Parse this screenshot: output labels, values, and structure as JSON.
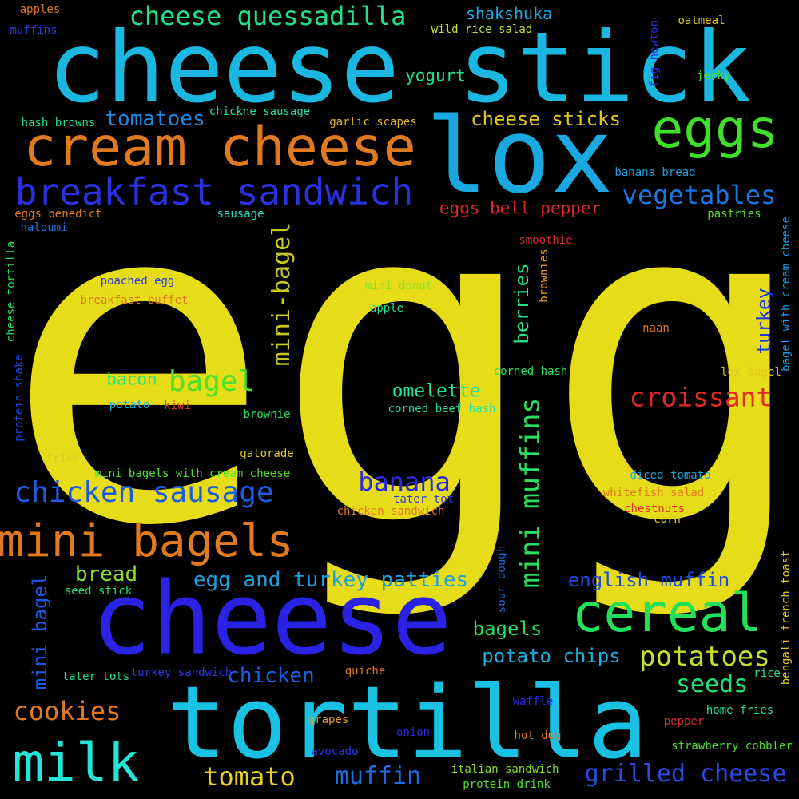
{
  "words": [
    {
      "text": "egg",
      "color": "#e6dc18"
    },
    {
      "text": "cheese stick",
      "color": "#1ab8e0"
    },
    {
      "text": "lox",
      "color": "#1aa8e0"
    },
    {
      "text": "cheese",
      "color": "#2a23e6"
    },
    {
      "text": "tortilla",
      "color": "#19c2e3"
    },
    {
      "text": "cream cheese",
      "color": "#e07a1f"
    },
    {
      "text": "eggs",
      "color": "#3ee02a"
    },
    {
      "text": "breakfast sandwich",
      "color": "#2a31e0"
    },
    {
      "text": "cereal",
      "color": "#22e05a"
    },
    {
      "text": "milk",
      "color": "#23e6d8"
    },
    {
      "text": "mini bagels",
      "color": "#e07a1f"
    },
    {
      "text": "cheese quessadilla",
      "color": "#22e08a"
    },
    {
      "text": "chicken sausage",
      "color": "#1f5be0"
    },
    {
      "text": "croissant",
      "color": "#e02a2a"
    },
    {
      "text": "mini muffins",
      "color": "#2ae060"
    },
    {
      "text": "mini-bagel",
      "color": "#c8c821"
    },
    {
      "text": "bagel",
      "color": "#50e02a"
    },
    {
      "text": "vegetables",
      "color": "#1a78e0"
    },
    {
      "text": "potatoes",
      "color": "#c8e02a"
    },
    {
      "text": "grilled cheese",
      "color": "#2a4ae0"
    },
    {
      "text": "banana",
      "color": "#2a2ae0"
    },
    {
      "text": "egg and turkey patties",
      "color": "#1aa0e0"
    },
    {
      "text": "tomatoes",
      "color": "#1a8ae0"
    },
    {
      "text": "cheese sticks",
      "color": "#e0c821"
    },
    {
      "text": "cookies",
      "color": "#e07a1f"
    },
    {
      "text": "tomato",
      "color": "#e6d21f"
    },
    {
      "text": "muffin",
      "color": "#1f6be0"
    },
    {
      "text": "english muffin",
      "color": "#1f4ae0"
    },
    {
      "text": "seeds",
      "color": "#23e07a"
    },
    {
      "text": "omelette",
      "color": "#22e0a0"
    },
    {
      "text": "mini bagel",
      "color": "#1a5ae0"
    },
    {
      "text": "berries",
      "color": "#22e08a"
    },
    {
      "text": "turkey",
      "color": "#1a38e0"
    },
    {
      "text": "potato chips",
      "color": "#1ab0e0"
    },
    {
      "text": "chicken",
      "color": "#1a60e0"
    },
    {
      "text": "bread",
      "color": "#8ae022"
    },
    {
      "text": "bagels",
      "color": "#22e060"
    },
    {
      "text": "bacon",
      "color": "#22e07a"
    },
    {
      "text": "eggs bell pepper",
      "color": "#e02a2a"
    },
    {
      "text": "shakshuka",
      "color": "#1aa8e0"
    },
    {
      "text": "yogurt",
      "color": "#22e08a"
    },
    {
      "text": "apples",
      "color": "#e07a1f"
    },
    {
      "text": "muffins",
      "color": "#2a3ae0"
    },
    {
      "text": "wild rice salad",
      "color": "#c8e02a"
    },
    {
      "text": "oatmeal",
      "color": "#e0c821"
    },
    {
      "text": "fig newton",
      "color": "#2a2ae0"
    },
    {
      "text": "jerky",
      "color": "#50e02a"
    },
    {
      "text": "hash browns",
      "color": "#22e08a"
    },
    {
      "text": "chickne sausage",
      "color": "#22e0a0"
    },
    {
      "text": "garlic scapes",
      "color": "#e0b821"
    },
    {
      "text": "banana bread",
      "color": "#1aa0e0"
    },
    {
      "text": "eggs benedict",
      "color": "#e07a1f"
    },
    {
      "text": "sausage",
      "color": "#22e0c0"
    },
    {
      "text": "pastries",
      "color": "#50e02a"
    },
    {
      "text": "haloumi",
      "color": "#1a78e0"
    },
    {
      "text": "smoothie",
      "color": "#e02a2a"
    },
    {
      "text": "bagel with cream cheese",
      "color": "#1a9ae0"
    },
    {
      "text": "cheese tortilla",
      "color": "#22e060"
    },
    {
      "text": "poached egg",
      "color": "#2a3ae0"
    },
    {
      "text": "breakfast buffet",
      "color": "#e07a1f"
    },
    {
      "text": "mini donut",
      "color": "#8ae022"
    },
    {
      "text": "apple",
      "color": "#22e08a"
    },
    {
      "text": "brownies",
      "color": "#e0a021"
    },
    {
      "text": "naan",
      "color": "#e07a1f"
    },
    {
      "text": "corned hash",
      "color": "#22e060"
    },
    {
      "text": "lox bagel",
      "color": "#e0c821"
    },
    {
      "text": "protein shake",
      "color": "#1a4ae0"
    },
    {
      "text": "potato",
      "color": "#1ab0e0"
    },
    {
      "text": "kiwi",
      "color": "#e02a2a"
    },
    {
      "text": "brownie",
      "color": "#22e060"
    },
    {
      "text": "corned beef hash",
      "color": "#22e0a0"
    },
    {
      "text": "gatorade",
      "color": "#e0c821"
    },
    {
      "text": "fries",
      "color": "#e0c821"
    },
    {
      "text": "mini bagels with cream cheese",
      "color": "#50e02a"
    },
    {
      "text": "diced tomato",
      "color": "#1aa8e0"
    },
    {
      "text": "tater tot",
      "color": "#2a3ae0"
    },
    {
      "text": "whitefish salad",
      "color": "#e07a1f"
    },
    {
      "text": "chicken sandwich",
      "color": "#e07a1f"
    },
    {
      "text": "chestnuts",
      "color": "#e02a2a"
    },
    {
      "text": "corn",
      "color": "#e0c821"
    },
    {
      "text": "seed stick",
      "color": "#22e060"
    },
    {
      "text": "sour dough",
      "color": "#1a6ae0"
    },
    {
      "text": "bengali french toast",
      "color": "#e0c821"
    },
    {
      "text": "tater tots",
      "color": "#22e08a"
    },
    {
      "text": "turkey sandwich",
      "color": "#2a3ae0"
    },
    {
      "text": "quiche",
      "color": "#e07a1f"
    },
    {
      "text": "rice",
      "color": "#22e08a"
    },
    {
      "text": "waffle",
      "color": "#2a2ae0"
    },
    {
      "text": "home fries",
      "color": "#22e0a0"
    },
    {
      "text": "grapes",
      "color": "#e0a021"
    },
    {
      "text": "pepper",
      "color": "#e02a2a"
    },
    {
      "text": "onion",
      "color": "#2a2ae0"
    },
    {
      "text": "hot dog",
      "color": "#e07a1f"
    },
    {
      "text": "strawberry cobbler",
      "color": "#50e02a"
    },
    {
      "text": "avocado",
      "color": "#2a3ae0"
    },
    {
      "text": "italian sandwich",
      "color": "#8ae022"
    },
    {
      "text": "protein drink",
      "color": "#50e02a"
    }
  ]
}
